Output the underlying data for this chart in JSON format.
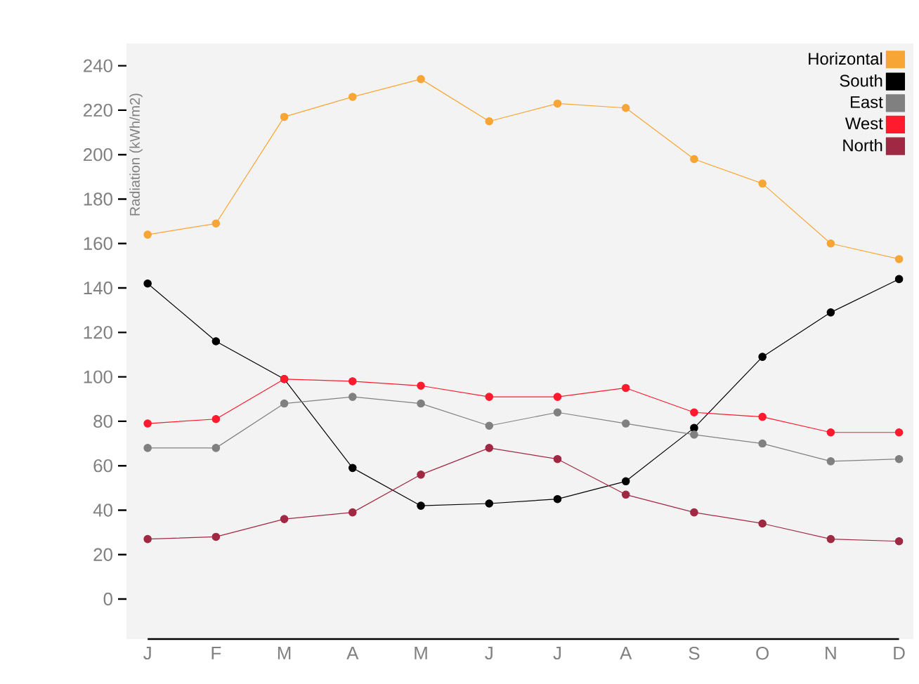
{
  "chart_data": {
    "type": "line",
    "ylabel": "Radiation (kWh/m2)",
    "categories": [
      "J",
      "F",
      "M",
      "A",
      "M",
      "J",
      "J",
      "A",
      "S",
      "O",
      "N",
      "D"
    ],
    "series": [
      {
        "name": "Horizontal",
        "color": "#f7a535",
        "values": [
          164,
          169,
          217,
          226,
          234,
          215,
          223,
          221,
          198,
          187,
          160,
          153
        ]
      },
      {
        "name": "South",
        "color": "#000000",
        "values": [
          142,
          116,
          99,
          59,
          42,
          43,
          45,
          53,
          77,
          109,
          129,
          144
        ]
      },
      {
        "name": "East",
        "color": "#808080",
        "values": [
          68,
          68,
          88,
          91,
          88,
          78,
          84,
          79,
          74,
          70,
          62,
          63
        ]
      },
      {
        "name": "West",
        "color": "#ff1a2e",
        "values": [
          79,
          81,
          99,
          98,
          96,
          91,
          91,
          95,
          84,
          82,
          75,
          75
        ]
      },
      {
        "name": "North",
        "color": "#a02842",
        "values": [
          27,
          28,
          36,
          39,
          56,
          68,
          63,
          47,
          39,
          34,
          27,
          26
        ]
      }
    ],
    "ylim": [
      -18,
      250
    ],
    "yticks": [
      0,
      20,
      40,
      60,
      80,
      100,
      120,
      140,
      160,
      180,
      200,
      220,
      240
    ],
    "legend": "top right",
    "marker": "circle",
    "line_style": "solid"
  }
}
